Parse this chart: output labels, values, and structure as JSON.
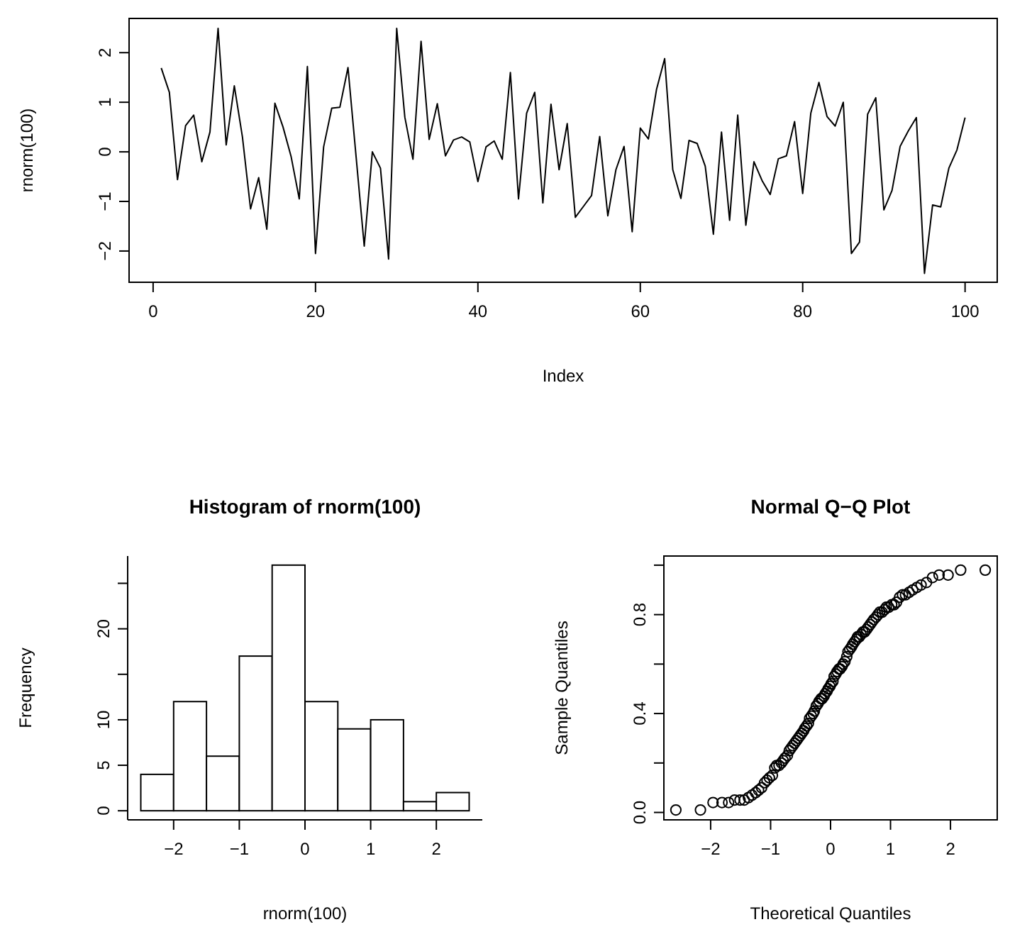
{
  "chart_data": [
    {
      "type": "line",
      "xlabel": "Index",
      "ylabel": "rnorm(100)",
      "color": "#000000",
      "xlim": [
        -2.96,
        103.96
      ],
      "ylim": [
        -2.63,
        2.69
      ],
      "xticks": [
        0,
        20,
        40,
        60,
        80,
        100
      ],
      "yticks": [
        -2,
        -1,
        0,
        1,
        2
      ],
      "x": [
        1,
        2,
        3,
        4,
        5,
        6,
        7,
        8,
        9,
        10,
        11,
        12,
        13,
        14,
        15,
        16,
        17,
        18,
        19,
        20,
        21,
        22,
        23,
        24,
        25,
        26,
        27,
        28,
        29,
        30,
        31,
        32,
        33,
        34,
        35,
        36,
        37,
        38,
        39,
        40,
        41,
        42,
        43,
        44,
        45,
        46,
        47,
        48,
        49,
        50,
        51,
        52,
        53,
        54,
        55,
        56,
        57,
        58,
        59,
        60,
        61,
        62,
        63,
        64,
        65,
        66,
        67,
        68,
        69,
        70,
        71,
        72,
        73,
        74,
        75,
        76,
        77,
        78,
        79,
        80,
        81,
        82,
        83,
        84,
        85,
        86,
        87,
        88,
        89,
        90,
        91,
        92,
        93,
        94,
        95,
        96,
        97,
        98,
        99,
        100
      ],
      "values": [
        1.69,
        1.2,
        -0.56,
        0.53,
        0.74,
        -0.2,
        0.4,
        2.49,
        0.14,
        1.33,
        0.3,
        -1.15,
        -0.52,
        -1.56,
        0.98,
        0.5,
        -0.1,
        -0.95,
        1.72,
        -2.05,
        0.1,
        0.88,
        0.9,
        1.7,
        -0.1,
        -1.9,
        0.0,
        -0.33,
        -2.16,
        2.49,
        0.7,
        -0.15,
        2.23,
        0.25,
        0.97,
        -0.08,
        0.24,
        0.3,
        0.2,
        -0.6,
        0.1,
        0.22,
        -0.15,
        1.6,
        -0.95,
        0.78,
        1.2,
        -1.03,
        0.96,
        -0.36,
        0.57,
        -1.32,
        -1.1,
        -0.88,
        0.31,
        -1.29,
        -0.36,
        0.11,
        -1.61,
        0.48,
        0.26,
        1.26,
        1.88,
        -0.36,
        -0.94,
        0.23,
        0.17,
        -0.29,
        -1.66,
        0.4,
        -1.38,
        0.74,
        -1.48,
        -0.2,
        -0.58,
        -0.86,
        -0.14,
        -0.08,
        0.61,
        -0.84,
        0.78,
        1.4,
        0.71,
        0.52,
        1.0,
        -2.05,
        -1.82,
        0.76,
        1.09,
        -1.17,
        -0.78,
        0.11,
        0.42,
        0.69,
        -2.45,
        -1.07,
        -1.11,
        -0.33,
        0.04,
        0.69
      ]
    },
    {
      "type": "histogram",
      "title": "Histogram of rnorm(100)",
      "xlabel": "rnorm(100)",
      "ylabel": "Frequency",
      "color": "#ffffff",
      "xlim": [
        -2.7,
        2.7
      ],
      "ylim": [
        -1,
        28
      ],
      "xticks": [
        -2,
        -1,
        0,
        1,
        2
      ],
      "yticks": [
        0,
        5,
        10,
        {
          "value": 15,
          "label": null
        },
        20,
        {
          "value": 25,
          "label": null
        }
      ],
      "bins": [
        -2.5,
        -2,
        -1.5,
        -1,
        -0.5,
        0,
        0.5,
        1,
        1.5,
        2,
        2.5
      ],
      "values": [
        4,
        12,
        6,
        17,
        27,
        12,
        9,
        10,
        1,
        2
      ]
    },
    {
      "type": "scatter",
      "title": "Normal Q−Q Plot",
      "xlabel": "Theoretical Quantiles",
      "ylabel": "Sample Quantiles",
      "color": "#000000",
      "marker": "circle",
      "xlim": [
        -2.78,
        2.78
      ],
      "ylim": [
        -0.03,
        1.037
      ],
      "xticks": [
        -2,
        -1,
        0,
        1,
        2
      ],
      "yticks": [
        {
          "value": 0,
          "label": "0.0"
        },
        {
          "value": 0.2,
          "label": null
        },
        0.4,
        {
          "value": 0.6,
          "label": null
        },
        0.8,
        {
          "value": 1,
          "label": null
        }
      ],
      "x": [
        -2.58,
        -2.17,
        -1.96,
        -1.81,
        -1.7,
        -1.6,
        -1.51,
        -1.44,
        -1.37,
        -1.31,
        -1.25,
        -1.2,
        -1.15,
        -1.1,
        -1.06,
        -1.02,
        -0.97,
        -0.93,
        -0.9,
        -0.86,
        -0.82,
        -0.79,
        -0.76,
        -0.72,
        -0.69,
        -0.66,
        -0.63,
        -0.6,
        -0.57,
        -0.54,
        -0.51,
        -0.48,
        -0.45,
        -0.43,
        -0.4,
        -0.37,
        -0.35,
        -0.32,
        -0.29,
        -0.27,
        -0.24,
        -0.21,
        -0.19,
        -0.16,
        -0.14,
        -0.11,
        -0.09,
        -0.06,
        -0.04,
        -0.01,
        0.01,
        0.04,
        0.06,
        0.09,
        0.11,
        0.14,
        0.16,
        0.19,
        0.21,
        0.24,
        0.27,
        0.29,
        0.32,
        0.35,
        0.37,
        0.4,
        0.43,
        0.45,
        0.48,
        0.51,
        0.54,
        0.57,
        0.6,
        0.63,
        0.66,
        0.69,
        0.72,
        0.76,
        0.79,
        0.82,
        0.86,
        0.9,
        0.93,
        0.97,
        1.02,
        1.06,
        1.1,
        1.15,
        1.2,
        1.25,
        1.31,
        1.37,
        1.44,
        1.51,
        1.6,
        1.7,
        1.81,
        1.96,
        2.17,
        2.58
      ],
      "values": [
        0.01,
        0.01,
        0.04,
        0.04,
        0.04,
        0.05,
        0.05,
        0.05,
        0.06,
        0.07,
        0.08,
        0.09,
        0.1,
        0.12,
        0.13,
        0.14,
        0.15,
        0.18,
        0.19,
        0.19,
        0.2,
        0.21,
        0.22,
        0.23,
        0.25,
        0.26,
        0.27,
        0.28,
        0.29,
        0.3,
        0.31,
        0.32,
        0.33,
        0.34,
        0.35,
        0.36,
        0.38,
        0.39,
        0.4,
        0.41,
        0.43,
        0.44,
        0.45,
        0.46,
        0.46,
        0.47,
        0.48,
        0.49,
        0.5,
        0.51,
        0.52,
        0.53,
        0.55,
        0.56,
        0.57,
        0.58,
        0.58,
        0.59,
        0.6,
        0.61,
        0.63,
        0.65,
        0.66,
        0.67,
        0.68,
        0.69,
        0.7,
        0.71,
        0.71,
        0.72,
        0.73,
        0.73,
        0.74,
        0.75,
        0.76,
        0.77,
        0.78,
        0.79,
        0.8,
        0.81,
        0.81,
        0.82,
        0.83,
        0.83,
        0.84,
        0.84,
        0.85,
        0.87,
        0.88,
        0.88,
        0.89,
        0.9,
        0.91,
        0.92,
        0.93,
        0.95,
        0.96,
        0.96,
        0.98,
        0.98
      ]
    }
  ]
}
